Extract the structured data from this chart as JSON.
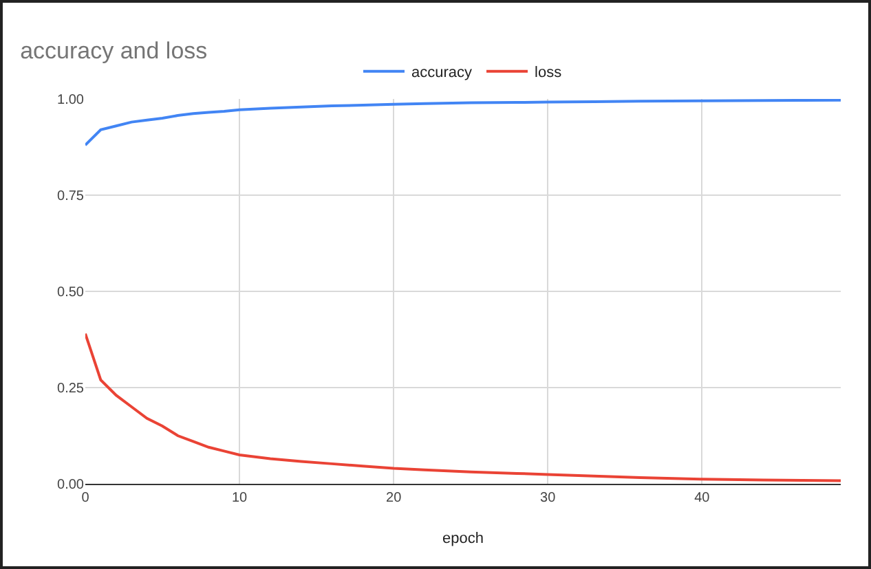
{
  "chart_data": {
    "type": "line",
    "title": "accuracy and loss",
    "xlabel": "epoch",
    "x": [
      0,
      1,
      2,
      3,
      4,
      5,
      6,
      7,
      8,
      9,
      10,
      12,
      14,
      16,
      18,
      20,
      22,
      25,
      28,
      30,
      33,
      36,
      40,
      44,
      49
    ],
    "series": [
      {
        "name": "accuracy",
        "color": "#4285f4",
        "values": [
          0.88,
          0.92,
          0.93,
          0.94,
          0.945,
          0.95,
          0.957,
          0.962,
          0.965,
          0.968,
          0.972,
          0.976,
          0.979,
          0.982,
          0.984,
          0.986,
          0.988,
          0.99,
          0.991,
          0.992,
          0.993,
          0.994,
          0.995,
          0.996,
          0.997
        ]
      },
      {
        "name": "loss",
        "color": "#ea4335",
        "values": [
          0.39,
          0.27,
          0.23,
          0.2,
          0.17,
          0.15,
          0.125,
          0.11,
          0.095,
          0.085,
          0.075,
          0.065,
          0.058,
          0.052,
          0.046,
          0.04,
          0.036,
          0.031,
          0.027,
          0.024,
          0.02,
          0.016,
          0.012,
          0.01,
          0.008
        ]
      }
    ],
    "xlim": [
      0,
      49
    ],
    "xticks": [
      0,
      10,
      20,
      30,
      40
    ],
    "ylim": [
      0,
      1
    ],
    "yticks": [
      {
        "value": 0,
        "label": "0.00"
      },
      {
        "value": 0.25,
        "label": "0.25"
      },
      {
        "value": 0.5,
        "label": "0.50"
      },
      {
        "value": 0.75,
        "label": "0.75"
      },
      {
        "value": 1,
        "label": "1.00"
      }
    ],
    "grid": true,
    "legend": "top",
    "marker": "none",
    "line_style": "solid"
  }
}
